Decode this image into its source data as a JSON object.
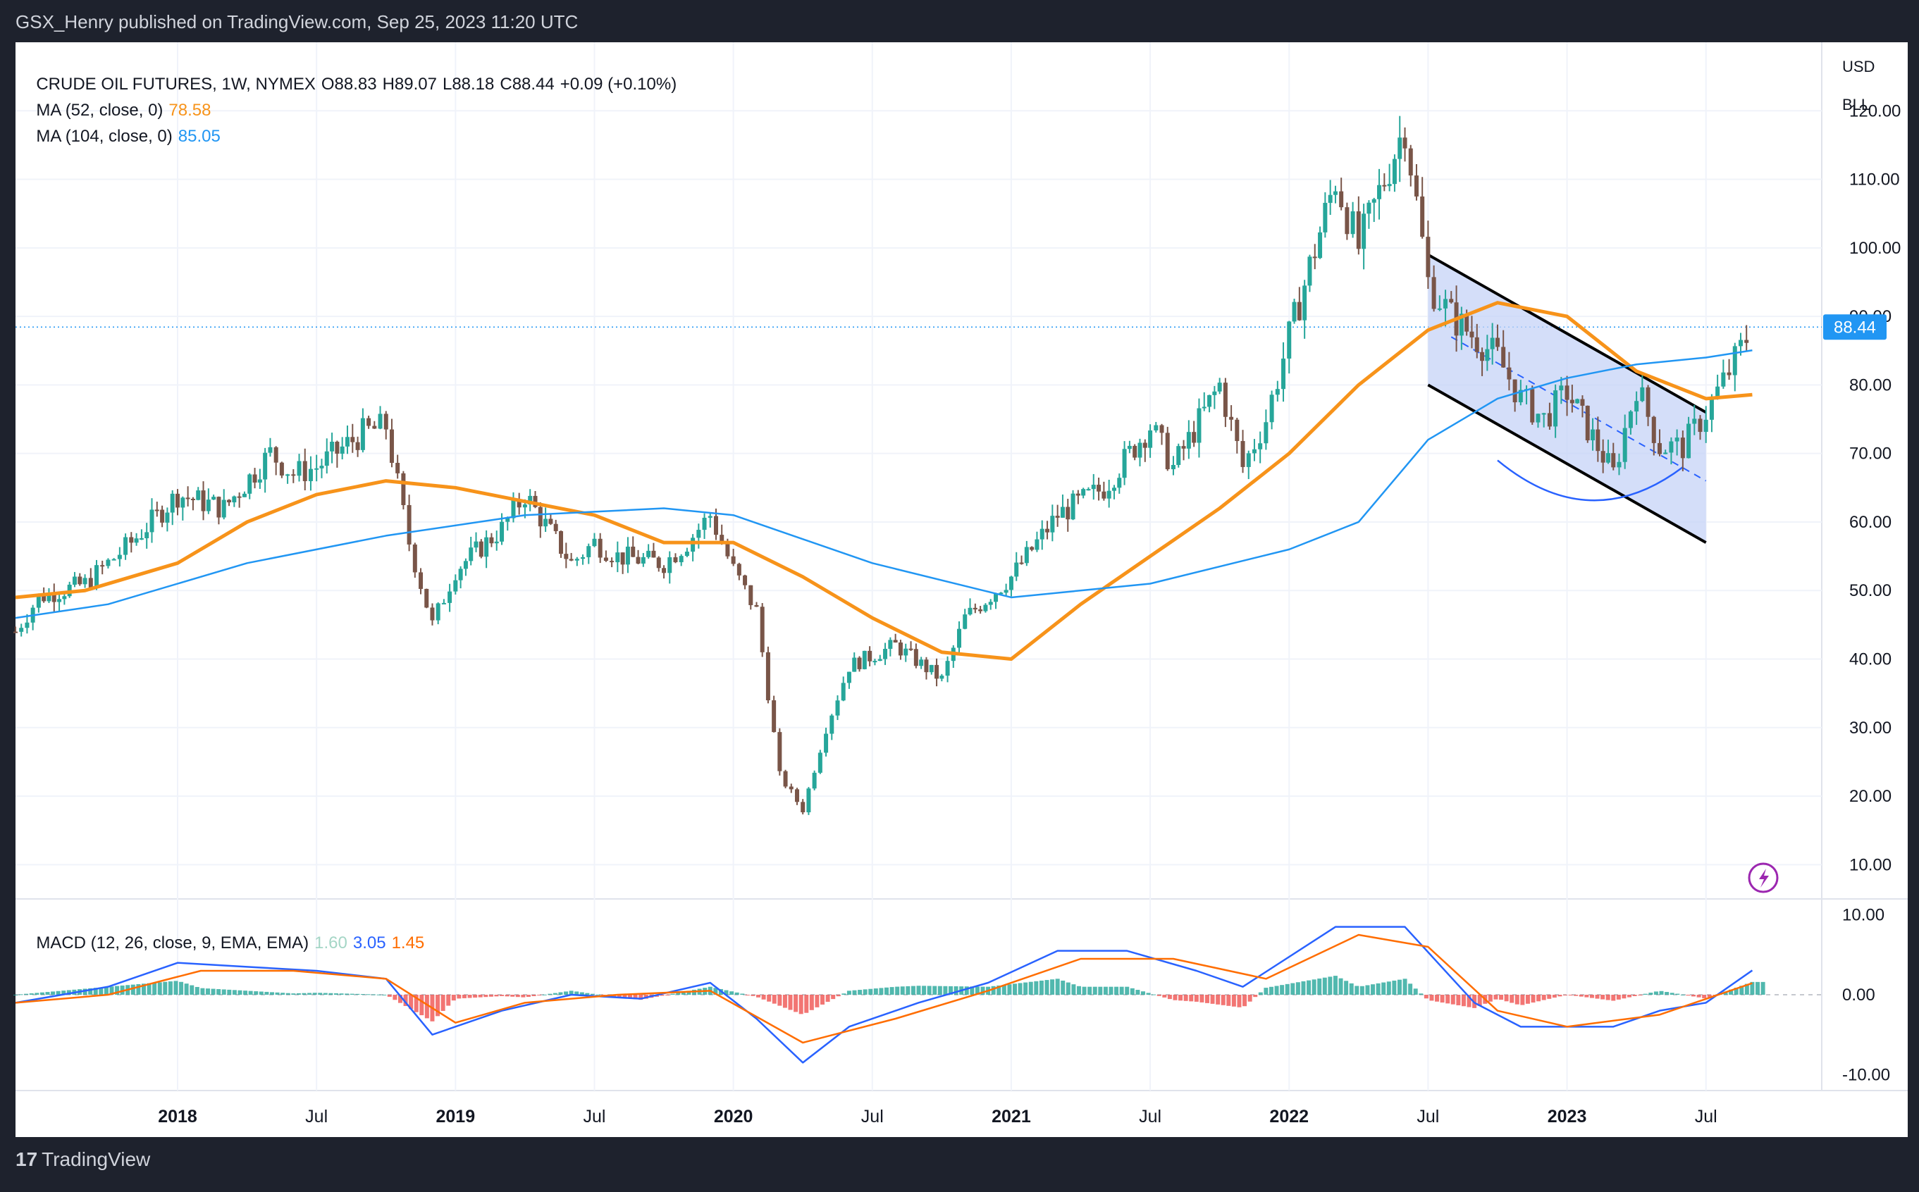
{
  "header": {
    "published": "GSX_Henry published on TradingView.com, Sep 25, 2023 11:20 UTC"
  },
  "symbol_line": {
    "symbol": "CRUDE OIL FUTURES, 1W, NYMEX",
    "open": "O88.83",
    "high": "H89.07",
    "low": "L88.18",
    "close": "C88.44",
    "change": "+0.09 (+0.10%)"
  },
  "ma52": {
    "label": "MA (52, close, 0)",
    "value": "78.58",
    "color": "#f7931a"
  },
  "ma104": {
    "label": "MA (104, close, 0)",
    "value": "85.05",
    "color": "#2196f3"
  },
  "macd": {
    "label": "MACD (12, 26, close, 9, EMA, EMA)",
    "hist": "1.60",
    "macd": "3.05",
    "signal": "1.45",
    "colors": {
      "hist": "#a5d6c6",
      "macd": "#2962ff",
      "signal": "#ff6d00"
    }
  },
  "scale_buttons": {
    "currency": "USD",
    "unit": "BLL"
  },
  "last_price_label": "88.44",
  "footer": {
    "brand": "TradingView"
  },
  "colors": {
    "up": "#26a69a",
    "down": "#795548",
    "hist_up": "#26a69a",
    "hist_down": "#ef5350",
    "channel_fill": "#c5d3f7"
  },
  "chart_data": [
    {
      "type": "candlestick",
      "title": "CRUDE OIL FUTURES, 1W, NYMEX",
      "ylim": [
        5,
        130
      ],
      "y_ticks": [
        "10.00",
        "20.00",
        "30.00",
        "40.00",
        "50.00",
        "60.00",
        "70.00",
        "80.00",
        "90.00",
        "100.00",
        "110.00",
        "120.00"
      ],
      "x_ticks": [
        "2018",
        "Jul",
        "2019",
        "Jul",
        "2020",
        "Jul",
        "2021",
        "Jul",
        "2022",
        "Jul",
        "2023",
        "Jul"
      ],
      "x_range": [
        "2017-06",
        "2023-12"
      ],
      "last_price": 88.44,
      "approx_weekly_closes": [
        {
          "date": "2017-06",
          "close": 44
        },
        {
          "date": "2017-07",
          "close": 49
        },
        {
          "date": "2017-09",
          "close": 51
        },
        {
          "date": "2017-10",
          "close": 54
        },
        {
          "date": "2017-11",
          "close": 57
        },
        {
          "date": "2018-01",
          "close": 64
        },
        {
          "date": "2018-03",
          "close": 62
        },
        {
          "date": "2018-05",
          "close": 70
        },
        {
          "date": "2018-06",
          "close": 67
        },
        {
          "date": "2018-07",
          "close": 68
        },
        {
          "date": "2018-09",
          "close": 73
        },
        {
          "date": "2018-10",
          "close": 74
        },
        {
          "date": "2018-11",
          "close": 57
        },
        {
          "date": "2018-12",
          "close": 45
        },
        {
          "date": "2019-01",
          "close": 53
        },
        {
          "date": "2019-03",
          "close": 59
        },
        {
          "date": "2019-04",
          "close": 64
        },
        {
          "date": "2019-06",
          "close": 54
        },
        {
          "date": "2019-07",
          "close": 57
        },
        {
          "date": "2019-08",
          "close": 55
        },
        {
          "date": "2019-10",
          "close": 54
        },
        {
          "date": "2019-11",
          "close": 57
        },
        {
          "date": "2019-12",
          "close": 61
        },
        {
          "date": "2020-01",
          "close": 53
        },
        {
          "date": "2020-02",
          "close": 47
        },
        {
          "date": "2020-03",
          "close": 23
        },
        {
          "date": "2020-04",
          "close": 18
        },
        {
          "date": "2020-05",
          "close": 30
        },
        {
          "date": "2020-06",
          "close": 39
        },
        {
          "date": "2020-08",
          "close": 42
        },
        {
          "date": "2020-10",
          "close": 37
        },
        {
          "date": "2020-11",
          "close": 46
        },
        {
          "date": "2021-01",
          "close": 52
        },
        {
          "date": "2021-03",
          "close": 61
        },
        {
          "date": "2021-05",
          "close": 65
        },
        {
          "date": "2021-07",
          "close": 74
        },
        {
          "date": "2021-08",
          "close": 68
        },
        {
          "date": "2021-10",
          "close": 80
        },
        {
          "date": "2021-11",
          "close": 68
        },
        {
          "date": "2021-12",
          "close": 75
        },
        {
          "date": "2022-01",
          "close": 87
        },
        {
          "date": "2022-03",
          "close": 110
        },
        {
          "date": "2022-04",
          "close": 100
        },
        {
          "date": "2022-06",
          "close": 118
        },
        {
          "date": "2022-07",
          "close": 95
        },
        {
          "date": "2022-08",
          "close": 90
        },
        {
          "date": "2022-10",
          "close": 84
        },
        {
          "date": "2022-11",
          "close": 78
        },
        {
          "date": "2022-12",
          "close": 75
        },
        {
          "date": "2023-01",
          "close": 79
        },
        {
          "date": "2023-03",
          "close": 67
        },
        {
          "date": "2023-04",
          "close": 80
        },
        {
          "date": "2023-05",
          "close": 71
        },
        {
          "date": "2023-06",
          "close": 71
        },
        {
          "date": "2023-07",
          "close": 76
        },
        {
          "date": "2023-08",
          "close": 82
        },
        {
          "date": "2023-09",
          "close": 88.44
        }
      ],
      "series": [
        {
          "name": "MA (52, close, 0)",
          "values": [
            {
              "date": "2017-06",
              "value": 49
            },
            {
              "date": "2017-09",
              "value": 50
            },
            {
              "date": "2018-01",
              "value": 54
            },
            {
              "date": "2018-04",
              "value": 60
            },
            {
              "date": "2018-07",
              "value": 64
            },
            {
              "date": "2018-10",
              "value": 66
            },
            {
              "date": "2019-01",
              "value": 65
            },
            {
              "date": "2019-04",
              "value": 63
            },
            {
              "date": "2019-07",
              "value": 61
            },
            {
              "date": "2019-10",
              "value": 57
            },
            {
              "date": "2020-01",
              "value": 57
            },
            {
              "date": "2020-04",
              "value": 52
            },
            {
              "date": "2020-07",
              "value": 46
            },
            {
              "date": "2020-10",
              "value": 41
            },
            {
              "date": "2021-01",
              "value": 40
            },
            {
              "date": "2021-04",
              "value": 48
            },
            {
              "date": "2021-07",
              "value": 55
            },
            {
              "date": "2021-10",
              "value": 62
            },
            {
              "date": "2022-01",
              "value": 70
            },
            {
              "date": "2022-04",
              "value": 80
            },
            {
              "date": "2022-07",
              "value": 88
            },
            {
              "date": "2022-10",
              "value": 92
            },
            {
              "date": "2023-01",
              "value": 90
            },
            {
              "date": "2023-04",
              "value": 82
            },
            {
              "date": "2023-07",
              "value": 78
            },
            {
              "date": "2023-09",
              "value": 78.58
            }
          ]
        },
        {
          "name": "MA (104, close, 0)",
          "values": [
            {
              "date": "2017-06",
              "value": 46
            },
            {
              "date": "2017-10",
              "value": 48
            },
            {
              "date": "2018-04",
              "value": 54
            },
            {
              "date": "2018-10",
              "value": 58
            },
            {
              "date": "2019-04",
              "value": 61
            },
            {
              "date": "2019-10",
              "value": 62
            },
            {
              "date": "2020-01",
              "value": 61
            },
            {
              "date": "2020-07",
              "value": 54
            },
            {
              "date": "2021-01",
              "value": 49
            },
            {
              "date": "2021-07",
              "value": 51
            },
            {
              "date": "2022-01",
              "value": 56
            },
            {
              "date": "2022-04",
              "value": 60
            },
            {
              "date": "2022-07",
              "value": 72
            },
            {
              "date": "2022-10",
              "value": 78
            },
            {
              "date": "2023-01",
              "value": 81
            },
            {
              "date": "2023-04",
              "value": 83
            },
            {
              "date": "2023-07",
              "value": 84
            },
            {
              "date": "2023-09",
              "value": 85.05
            }
          ]
        }
      ],
      "annotations": {
        "channel_upper": [
          {
            "date": "2022-07",
            "value": 99
          },
          {
            "date": "2023-07",
            "value": 76
          }
        ],
        "channel_lower": [
          {
            "date": "2022-07",
            "value": 80
          },
          {
            "date": "2023-07",
            "value": 57
          }
        ],
        "channel_mid_dashed": [
          {
            "date": "2022-08",
            "value": 87
          },
          {
            "date": "2023-07",
            "value": 66
          }
        ],
        "arc": [
          {
            "date": "2022-10",
            "value": 69
          },
          {
            "date": "2023-02",
            "value": 64
          },
          {
            "date": "2023-06",
            "value": 68
          }
        ]
      }
    },
    {
      "type": "line",
      "title": "MACD (12, 26, close, 9, EMA, EMA)",
      "ylim": [
        -12,
        12
      ],
      "y_ticks": [
        "10.00",
        "0.00",
        "-10.00"
      ],
      "series": [
        {
          "name": "MACD",
          "values": [
            {
              "date": "2017-06",
              "value": -1
            },
            {
              "date": "2017-10",
              "value": 1
            },
            {
              "date": "2018-01",
              "value": 4
            },
            {
              "date": "2018-04",
              "value": 3.5
            },
            {
              "date": "2018-07",
              "value": 3
            },
            {
              "date": "2018-10",
              "value": 2
            },
            {
              "date": "2018-12",
              "value": -5
            },
            {
              "date": "2019-03",
              "value": -2
            },
            {
              "date": "2019-06",
              "value": 0
            },
            {
              "date": "2019-09",
              "value": -0.5
            },
            {
              "date": "2019-12",
              "value": 1.5
            },
            {
              "date": "2020-02",
              "value": -3
            },
            {
              "date": "2020-04",
              "value": -8.5
            },
            {
              "date": "2020-06",
              "value": -4
            },
            {
              "date": "2020-09",
              "value": -1
            },
            {
              "date": "2020-12",
              "value": 1.5
            },
            {
              "date": "2021-03",
              "value": 5.5
            },
            {
              "date": "2021-06",
              "value": 5.5
            },
            {
              "date": "2021-09",
              "value": 3
            },
            {
              "date": "2021-11",
              "value": 1
            },
            {
              "date": "2022-03",
              "value": 8.5
            },
            {
              "date": "2022-06",
              "value": 8.5
            },
            {
              "date": "2022-09",
              "value": -1
            },
            {
              "date": "2022-11",
              "value": -4
            },
            {
              "date": "2023-01",
              "value": -4
            },
            {
              "date": "2023-03",
              "value": -4
            },
            {
              "date": "2023-05",
              "value": -2
            },
            {
              "date": "2023-07",
              "value": -1
            },
            {
              "date": "2023-09",
              "value": 3.05
            }
          ]
        },
        {
          "name": "Signal",
          "values": [
            {
              "date": "2017-06",
              "value": -1
            },
            {
              "date": "2017-10",
              "value": 0
            },
            {
              "date": "2018-02",
              "value": 3
            },
            {
              "date": "2018-06",
              "value": 3
            },
            {
              "date": "2018-10",
              "value": 2
            },
            {
              "date": "2019-01",
              "value": -3.5
            },
            {
              "date": "2019-04",
              "value": -1
            },
            {
              "date": "2019-08",
              "value": 0
            },
            {
              "date": "2019-12",
              "value": 0.5
            },
            {
              "date": "2020-04",
              "value": -6
            },
            {
              "date": "2020-08",
              "value": -3
            },
            {
              "date": "2020-12",
              "value": 0.5
            },
            {
              "date": "2021-04",
              "value": 4.5
            },
            {
              "date": "2021-08",
              "value": 4.5
            },
            {
              "date": "2021-12",
              "value": 2
            },
            {
              "date": "2022-04",
              "value": 7.5
            },
            {
              "date": "2022-07",
              "value": 6
            },
            {
              "date": "2022-10",
              "value": -2
            },
            {
              "date": "2023-01",
              "value": -4
            },
            {
              "date": "2023-05",
              "value": -2.5
            },
            {
              "date": "2023-09",
              "value": 1.45
            }
          ]
        }
      ]
    }
  ]
}
